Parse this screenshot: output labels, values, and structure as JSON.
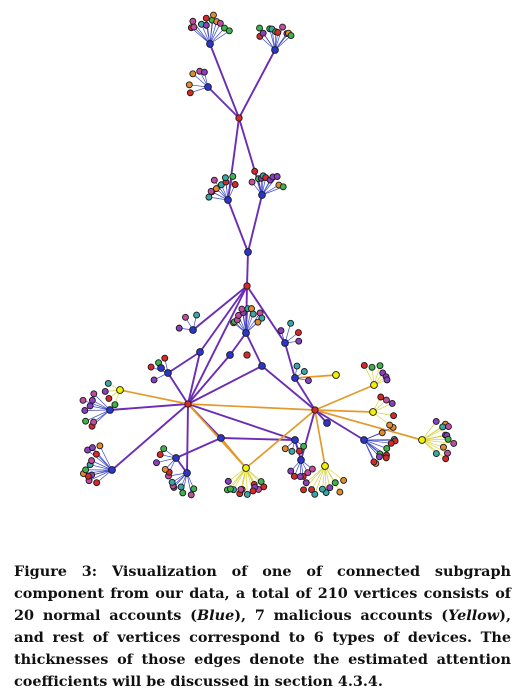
{
  "legend": {
    "normal_color": "#2b35c9",
    "malicious_color": "#f3f000",
    "device_colors": [
      "#d62a2a",
      "#3fb34a",
      "#8a3fbe",
      "#c04ca0",
      "#3aa6a8",
      "#e28a2e"
    ]
  },
  "edge_colors": {
    "trunk": "#6a2db4",
    "malicious": "#e39a2a",
    "leaf_normal": "#3a48c8",
    "leaf_malicious": "#d7d23a"
  },
  "caption": {
    "figure_label": "Figure 3:",
    "part1": " Visualization of one of connected subgraph component from our data, a total of 210 vertices consists of 20 normal accounts (",
    "blue_word": "Blue",
    "part2": "), 7 malicious accounts (",
    "yellow_word": "Yellow",
    "part3": "), and rest of vertices correspond to 6 types of devices. The thicknesses of those edges denote the estimated attention coefficients will be discussed in section 4.3.4."
  }
}
